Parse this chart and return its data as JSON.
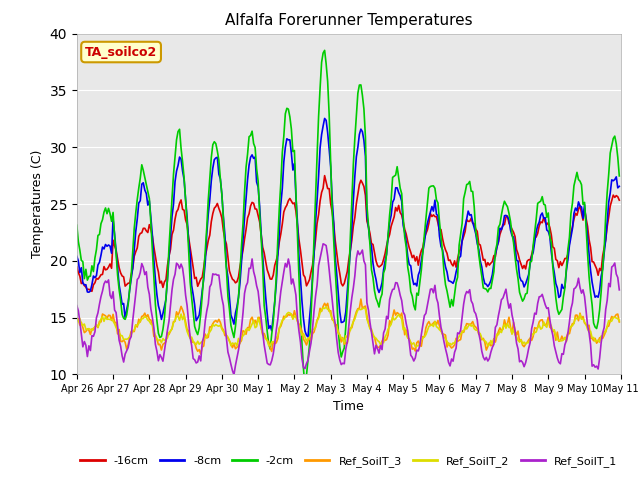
{
  "title": "Alfalfa Forerunner Temperatures",
  "xlabel": "Time",
  "ylabel": "Temperatures (C)",
  "ylim": [
    10,
    40
  ],
  "yticks": [
    10,
    15,
    20,
    25,
    30,
    35,
    40
  ],
  "annotation_text": "TA_soilco2",
  "annotation_color": "#cc0000",
  "annotation_bg": "#ffffcc",
  "annotation_border": "#cc9900",
  "series_colors": {
    "-16cm": "#dd0000",
    "-8cm": "#0000ee",
    "-2cm": "#00cc00",
    "Ref_SoilT_3": "#ff9900",
    "Ref_SoilT_2": "#dddd00",
    "Ref_SoilT_1": "#aa22cc"
  },
  "plot_bg": "#e8e8e8",
  "x_tick_labels": [
    "Apr 26",
    "Apr 27",
    "Apr 28",
    "Apr 29",
    "Apr 30",
    "May 1",
    "May 2",
    "May 3",
    "May 4",
    "May 5",
    "May 6",
    "May 7",
    "May 8",
    "May 9",
    "May 10",
    "May 11"
  ],
  "n_points": 360,
  "figwidth": 6.4,
  "figheight": 4.8,
  "dpi": 100
}
